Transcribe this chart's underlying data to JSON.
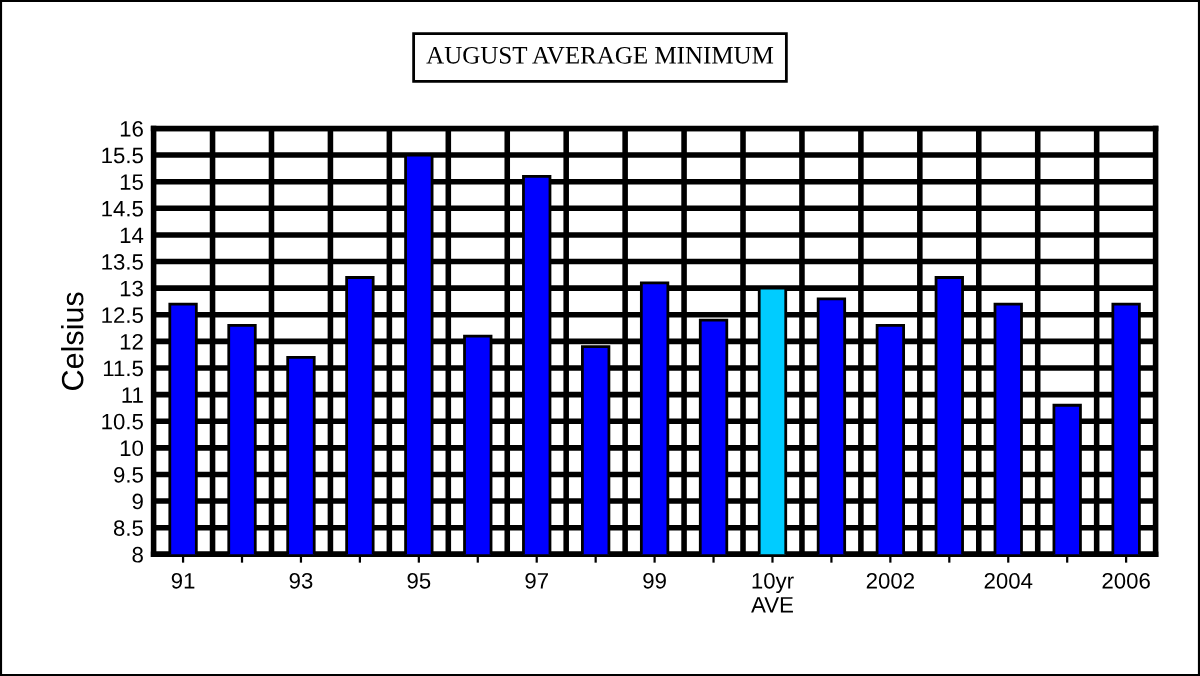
{
  "chart_data": {
    "type": "bar",
    "title": "AUGUST AVERAGE MINIMUM",
    "ylabel": "Celsius",
    "categories": [
      "91",
      null,
      "93",
      null,
      "95",
      null,
      "97",
      null,
      "99",
      null,
      "10yr\nAVE",
      null,
      "2002",
      null,
      "2004",
      null,
      "2006"
    ],
    "values": [
      12.7,
      12.3,
      11.7,
      13.2,
      15.5,
      12.1,
      15.1,
      11.9,
      13.1,
      12.4,
      13.0,
      12.8,
      12.3,
      13.2,
      12.7,
      10.8,
      12.7
    ],
    "colors": [
      "#0000ff",
      "#0000ff",
      "#0000ff",
      "#0000ff",
      "#0000ff",
      "#0000ff",
      "#0000ff",
      "#0000ff",
      "#0000ff",
      "#0000ff",
      "#00ccff",
      "#0000ff",
      "#0000ff",
      "#0000ff",
      "#0000ff",
      "#0000ff",
      "#0000ff"
    ],
    "ylim": [
      8,
      16
    ],
    "yticks": [
      8,
      8.5,
      9,
      9.5,
      10,
      10.5,
      11,
      11.5,
      12,
      12.5,
      13,
      13.5,
      14,
      14.5,
      15,
      15.5,
      16
    ],
    "grid": true,
    "legend": false
  }
}
